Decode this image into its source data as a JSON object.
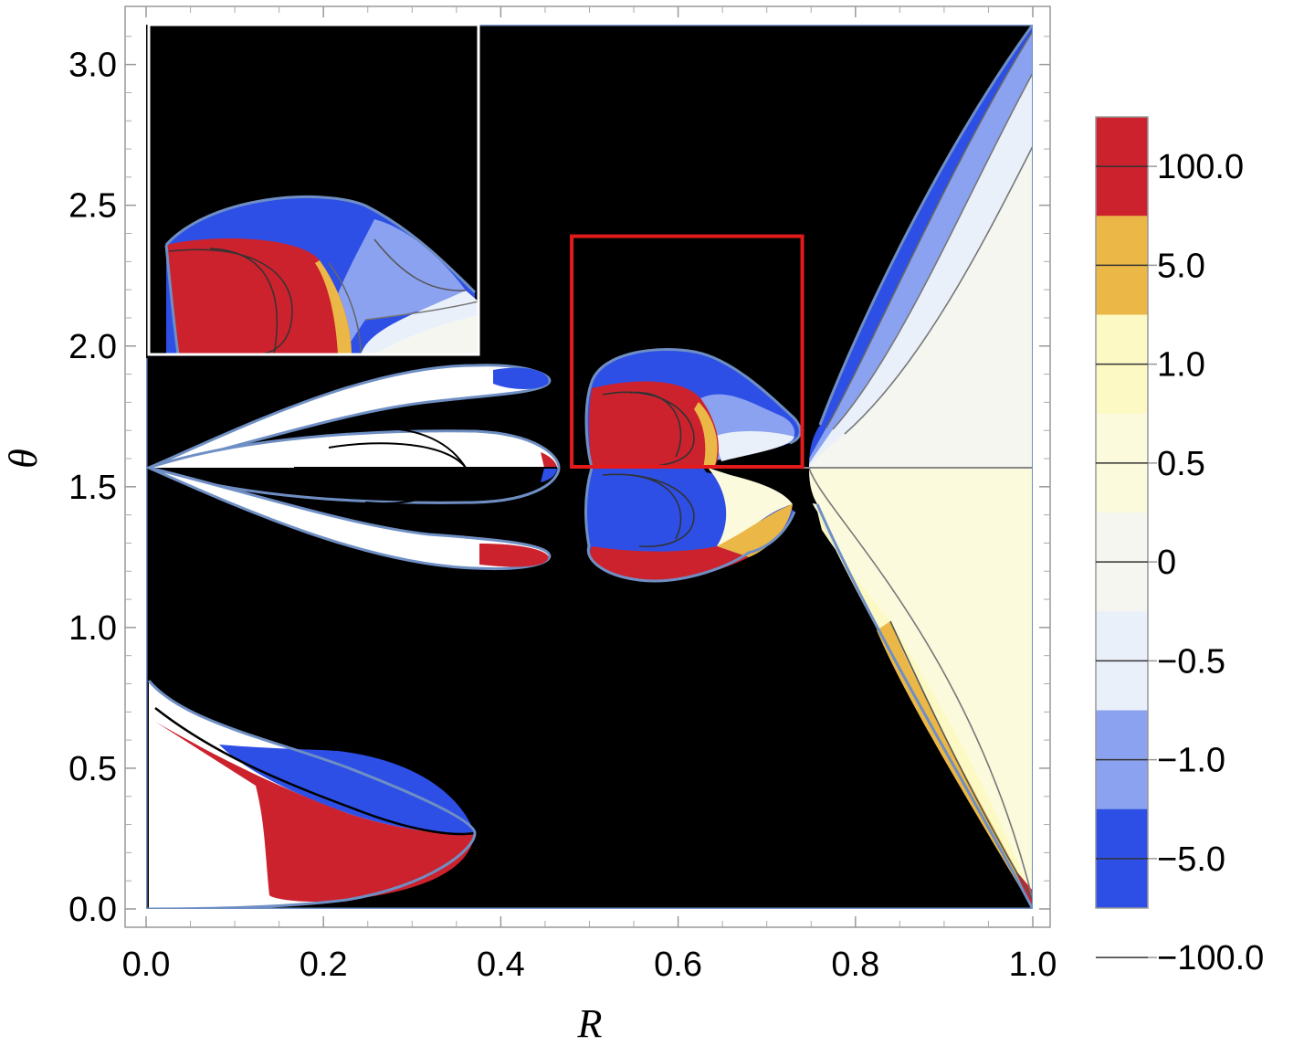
{
  "chart_data": {
    "type": "heatmap",
    "xlabel": "R",
    "ylabel": "θ",
    "xlim": [
      0.0,
      1.0
    ],
    "ylim": [
      0.0,
      3.14159
    ],
    "x_ticks": [
      "0.0",
      "0.2",
      "0.4",
      "0.6",
      "0.8",
      "1.0"
    ],
    "y_ticks": [
      "0.0",
      "0.5",
      "1.0",
      "1.5",
      "2.0",
      "2.5",
      "3.0"
    ],
    "legend": {
      "placement": "right",
      "labels": [
        "100.0",
        "5.0",
        "1.0",
        "0.5",
        "0",
        "−0.5",
        "−1.0",
        "−5.0",
        "−100.0"
      ],
      "bands": [
        {
          "from": 5.0,
          "to": 100.0,
          "color": "#cc222e"
        },
        {
          "from": 1.0,
          "to": 5.0,
          "color": "#ebb746"
        },
        {
          "from": 0.5,
          "to": 1.0,
          "color": "#fdf9c4"
        },
        {
          "from": 0.0,
          "to": 0.5,
          "color": "#fbfadc"
        },
        {
          "from": -0.5,
          "to": 0.0,
          "color": "#f5f6ef"
        },
        {
          "from": -1.0,
          "to": -0.5,
          "color": "#eaf0fa"
        },
        {
          "from": -5.0,
          "to": -1.0,
          "color": "#8aa2ef"
        },
        {
          "from": -100.0,
          "to": -5.0,
          "color": "#2d4fe6"
        }
      ]
    },
    "background_color": "#000000",
    "highlight_box": {
      "x": [
        0.48,
        0.74
      ],
      "y": [
        1.5708,
        2.39
      ],
      "color": "#e31a1c"
    },
    "inset": "magnified view of highlighted region",
    "grid": false
  }
}
